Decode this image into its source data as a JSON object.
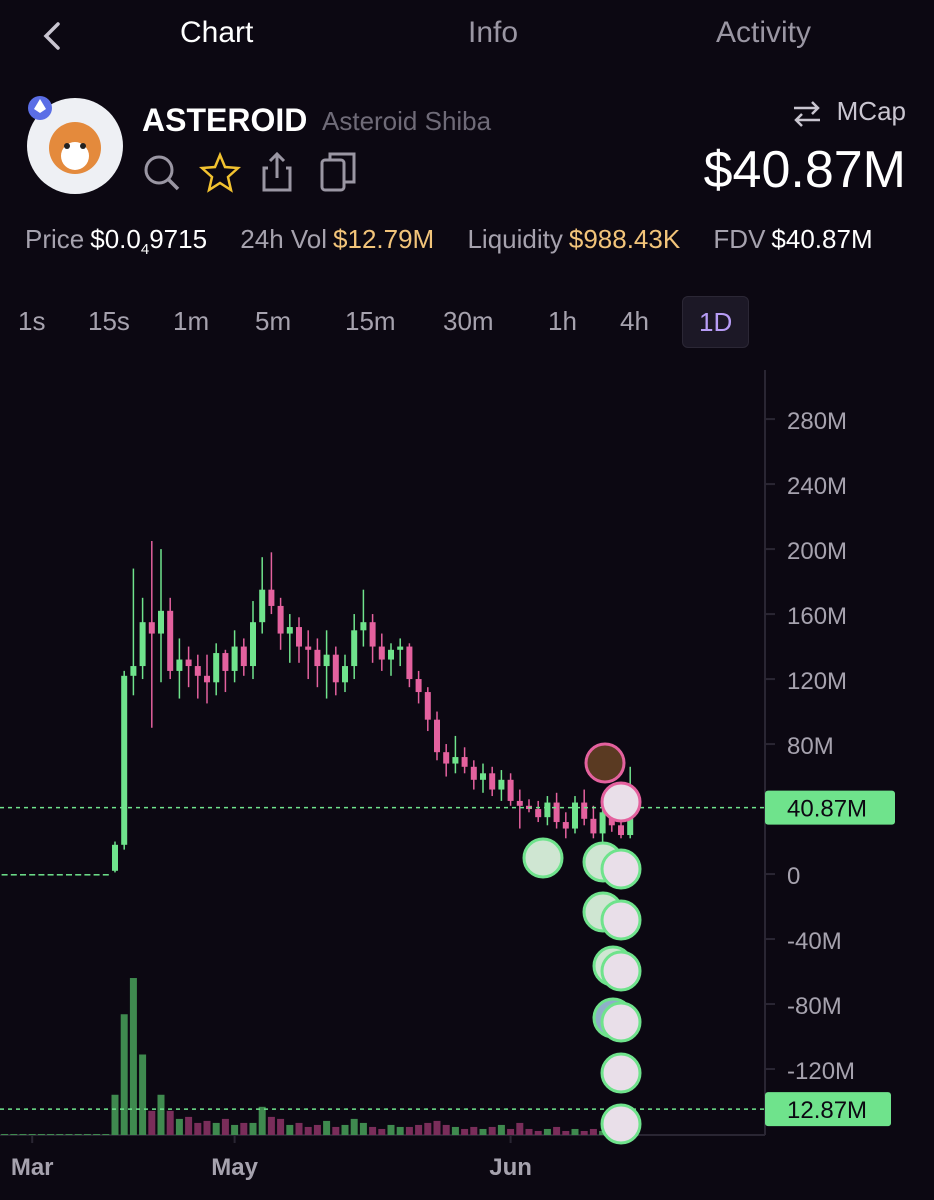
{
  "tabs": [
    "Chart",
    "Info",
    "Activity"
  ],
  "token": {
    "symbol": "ASTEROID",
    "name": "Asteroid Shiba",
    "mcap_label": "MCap",
    "mcap": "$40.87M"
  },
  "stats": {
    "price_label": "Price",
    "price_prefix": "$0.0",
    "price_zeros": "4",
    "price_digits": "9715",
    "vol_label": "24h Vol",
    "vol": "$12.79M",
    "liq_label": "Liquidity",
    "liq": "$988.43K",
    "fdv_label": "FDV",
    "fdv": "$40.87M"
  },
  "intervals": [
    "1s",
    "15s",
    "1m",
    "5m",
    "15m",
    "30m",
    "1h",
    "4h",
    "1D"
  ],
  "selected_interval": "1D",
  "chart_data": {
    "type": "candlestick",
    "up_color": "#6fe38c",
    "down_color": "#e4619e",
    "ylim": [
      -160.6,
      310.2
    ],
    "yticks": [
      {
        "value": 280,
        "label": "280M"
      },
      {
        "value": 240,
        "label": "240M"
      },
      {
        "value": 200,
        "label": "200M"
      },
      {
        "value": 160,
        "label": "160M"
      },
      {
        "value": 120,
        "label": "120M"
      },
      {
        "value": 80,
        "label": "80M"
      },
      0,
      {
        "value": -40,
        "label": "-40M"
      },
      {
        "value": -80,
        "label": "-80M"
      },
      {
        "value": -120,
        "label": "-120M"
      }
    ],
    "last_price": {
      "value": 40.87,
      "label": "40.87M"
    },
    "last_volume": {
      "value": 12.87,
      "label": "12.87M"
    },
    "volume_lim": [
      0,
      80
    ],
    "categories": [
      null,
      null,
      null,
      "Mar",
      null,
      null,
      null,
      null,
      null,
      null,
      null,
      null,
      null,
      null,
      null,
      null,
      null,
      null,
      null,
      null,
      null,
      null,
      null,
      null,
      null,
      "May",
      null,
      null,
      null,
      null,
      null,
      null,
      null,
      null,
      null,
      null,
      null,
      null,
      null,
      null,
      null,
      null,
      null,
      null,
      null,
      null,
      null,
      null,
      null,
      null,
      null,
      null,
      null,
      null,
      null,
      "Jun",
      null,
      null,
      null,
      null,
      null,
      null,
      null,
      null,
      null,
      null,
      null,
      null,
      null
    ],
    "ohlc": [
      [
        0,
        0,
        0,
        0
      ],
      [
        0,
        0,
        0,
        0
      ],
      [
        0,
        0,
        0,
        0
      ],
      [
        0,
        0,
        0,
        0
      ],
      [
        0,
        0,
        0,
        0
      ],
      [
        0,
        0,
        0,
        0
      ],
      [
        0,
        0,
        0,
        0
      ],
      [
        0,
        0,
        0,
        0
      ],
      [
        0,
        0,
        0,
        0
      ],
      [
        0,
        0,
        0,
        0
      ],
      [
        0,
        0,
        0,
        0
      ],
      [
        0,
        0,
        0,
        0
      ],
      [
        2,
        20,
        1,
        18
      ],
      [
        18,
        125,
        15,
        122
      ],
      [
        122,
        188,
        110,
        128
      ],
      [
        128,
        170,
        120,
        155
      ],
      [
        155,
        205,
        90,
        148
      ],
      [
        148,
        200,
        118,
        162
      ],
      [
        162,
        170,
        120,
        125
      ],
      [
        125,
        145,
        108,
        132
      ],
      [
        132,
        140,
        115,
        128
      ],
      [
        128,
        135,
        108,
        122
      ],
      [
        122,
        135,
        105,
        118
      ],
      [
        118,
        142,
        110,
        136
      ],
      [
        136,
        138,
        112,
        125
      ],
      [
        125,
        150,
        118,
        140
      ],
      [
        140,
        145,
        122,
        128
      ],
      [
        128,
        168,
        120,
        155
      ],
      [
        155,
        195,
        148,
        175
      ],
      [
        175,
        198,
        160,
        165
      ],
      [
        165,
        170,
        138,
        148
      ],
      [
        148,
        160,
        130,
        152
      ],
      [
        152,
        158,
        130,
        140
      ],
      [
        140,
        150,
        120,
        138
      ],
      [
        138,
        145,
        115,
        128
      ],
      [
        128,
        150,
        108,
        135
      ],
      [
        135,
        140,
        110,
        118
      ],
      [
        118,
        135,
        112,
        128
      ],
      [
        128,
        160,
        120,
        150
      ],
      [
        150,
        175,
        140,
        155
      ],
      [
        155,
        160,
        130,
        140
      ],
      [
        140,
        148,
        125,
        132
      ],
      [
        132,
        142,
        122,
        138
      ],
      [
        138,
        145,
        128,
        140
      ],
      [
        140,
        142,
        115,
        120
      ],
      [
        120,
        125,
        105,
        112
      ],
      [
        112,
        115,
        88,
        95
      ],
      [
        95,
        100,
        70,
        75
      ],
      [
        75,
        80,
        60,
        68
      ],
      [
        68,
        85,
        62,
        72
      ],
      [
        72,
        78,
        62,
        66
      ],
      [
        66,
        70,
        52,
        58
      ],
      [
        58,
        68,
        50,
        62
      ],
      [
        62,
        66,
        48,
        52
      ],
      [
        52,
        64,
        45,
        58
      ],
      [
        58,
        62,
        42,
        45
      ],
      [
        45,
        52,
        28,
        42
      ],
      [
        42,
        46,
        38,
        40
      ],
      [
        40,
        45,
        32,
        35
      ],
      [
        35,
        48,
        30,
        44
      ],
      [
        44,
        50,
        28,
        32
      ],
      [
        32,
        38,
        22,
        28
      ],
      [
        28,
        48,
        25,
        44
      ],
      [
        44,
        52,
        30,
        34
      ],
      [
        34,
        42,
        22,
        25
      ],
      [
        25,
        40,
        20,
        38
      ],
      [
        38,
        42,
        26,
        30
      ],
      [
        30,
        38,
        22,
        24
      ],
      [
        24,
        66,
        22,
        40.87
      ]
    ],
    "volume": [
      0.5,
      0.5,
      0.5,
      0.5,
      0.5,
      0.5,
      0.5,
      0.5,
      0.5,
      0.5,
      0.5,
      0.5,
      20,
      60,
      78,
      40,
      12,
      20,
      12,
      8,
      9,
      6,
      7,
      6,
      8,
      5,
      6,
      6,
      14,
      9,
      8,
      5,
      6,
      4,
      5,
      7,
      4,
      5,
      8,
      6,
      4,
      3,
      5,
      4,
      4,
      5,
      6,
      7,
      5,
      4,
      3,
      4,
      3,
      4,
      5,
      3,
      6,
      3,
      2,
      3,
      4,
      2,
      3,
      2,
      3,
      2,
      3,
      4,
      12.87
    ]
  }
}
